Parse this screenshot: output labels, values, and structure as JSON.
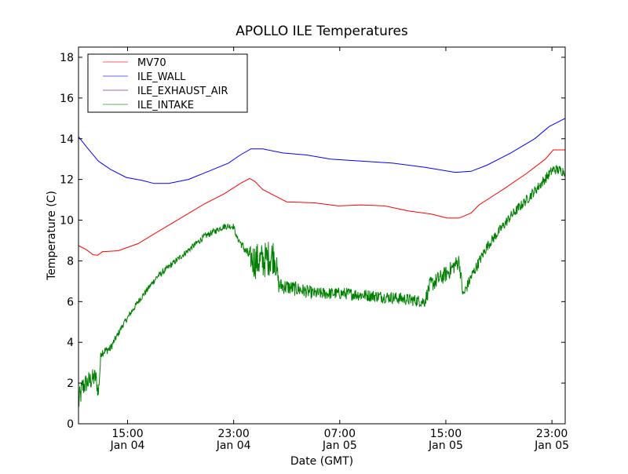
{
  "chart_data": {
    "type": "line",
    "title": "APOLLO ILE Temperatures",
    "xlabel": "Date (GMT)",
    "ylabel": "Temperature (C)",
    "x_units": "hours since Jan 04 00:00 GMT",
    "xlim": [
      11.3,
      48.0
    ],
    "ylim": [
      0,
      18.5
    ],
    "grid": false,
    "legend_position": "top-left",
    "yticks": [
      0,
      2,
      4,
      6,
      8,
      10,
      12,
      14,
      16,
      18
    ],
    "xticks": [
      {
        "value": 15,
        "time": "15:00",
        "date": "Jan 04"
      },
      {
        "value": 23,
        "time": "23:00",
        "date": "Jan 04"
      },
      {
        "value": 31,
        "time": "07:00",
        "date": "Jan 05"
      },
      {
        "value": 39,
        "time": "15:00",
        "date": "Jan 05"
      },
      {
        "value": 47,
        "time": "23:00",
        "date": "Jan 05"
      }
    ],
    "series": [
      {
        "name": "MV70",
        "color": "#ff0000",
        "legend_color": "#ff6666",
        "x": [
          11.3,
          11.9,
          12.4,
          12.75,
          13.1,
          14.3,
          15.8,
          17.2,
          19.0,
          20.8,
          22.3,
          23.5,
          24.2,
          24.6,
          25.2,
          26.1,
          27.0,
          29.1,
          30.9,
          32.6,
          34.4,
          36.2,
          37.9,
          39.1,
          40.0,
          40.9,
          41.5,
          43.3,
          45.1,
          46.5,
          47.1,
          48.0
        ],
        "y": [
          8.75,
          8.55,
          8.3,
          8.28,
          8.45,
          8.5,
          8.85,
          9.4,
          10.1,
          10.8,
          11.3,
          11.8,
          12.05,
          11.9,
          11.5,
          11.2,
          10.9,
          10.85,
          10.7,
          10.75,
          10.7,
          10.45,
          10.3,
          10.1,
          10.1,
          10.35,
          10.75,
          11.5,
          12.3,
          13.0,
          13.45,
          13.45
        ]
      },
      {
        "name": "ILE_WALL",
        "color": "#0000ff",
        "legend_color": "#6666ff",
        "x": [
          11.3,
          11.9,
          12.8,
          13.7,
          14.9,
          16.1,
          17.0,
          18.1,
          19.6,
          21.1,
          22.6,
          23.5,
          24.3,
          25.2,
          26.7,
          28.5,
          30.3,
          32.6,
          35.0,
          37.4,
          39.7,
          40.9,
          42.1,
          43.9,
          45.7,
          46.8,
          48.0
        ],
        "y": [
          14.1,
          13.6,
          12.9,
          12.5,
          12.1,
          11.95,
          11.8,
          11.8,
          12.0,
          12.4,
          12.8,
          13.2,
          13.5,
          13.5,
          13.3,
          13.2,
          13.0,
          12.9,
          12.8,
          12.6,
          12.35,
          12.4,
          12.7,
          13.3,
          14.0,
          14.6,
          15.0
        ]
      },
      {
        "name": "ILE_EXHAUST_AIR",
        "color": "#800080",
        "legend_color": "#a366a3",
        "x": [],
        "y": []
      },
      {
        "name": "ILE_INTAKE",
        "color": "#008000",
        "legend_color": "#66b366",
        "x": [
          11.3,
          11.6,
          11.9,
          12.6,
          12.8,
          13.0,
          13.7,
          14.6,
          15.8,
          17.2,
          19.0,
          20.8,
          22.3,
          23.0,
          23.2,
          24.1,
          24.5,
          25.2,
          26.1,
          26.4,
          27.9,
          29.1,
          31.4,
          33.2,
          35.0,
          37.4,
          37.8,
          39.1,
          40.0,
          40.3,
          40.9,
          42.1,
          43.9,
          45.1,
          46.2,
          47.1,
          48.0
        ],
        "y": [
          1.0,
          1.8,
          2.0,
          2.3,
          1.5,
          3.5,
          3.7,
          4.8,
          6.0,
          7.2,
          8.2,
          9.2,
          9.7,
          9.7,
          9.2,
          8.3,
          8.0,
          8.0,
          8.3,
          6.8,
          6.6,
          6.4,
          6.4,
          6.3,
          6.2,
          6.0,
          6.8,
          7.4,
          8.0,
          6.3,
          7.2,
          8.7,
          10.2,
          11.0,
          11.8,
          12.5,
          12.4
        ],
        "spread": [
          0.6,
          0.6,
          0.5,
          0.5,
          0.4,
          0.25,
          0.2,
          0.15,
          0.15,
          0.15,
          0.15,
          0.15,
          0.15,
          0.15,
          0.1,
          0.3,
          0.9,
          0.9,
          0.9,
          0.4,
          0.35,
          0.3,
          0.3,
          0.3,
          0.3,
          0.3,
          0.4,
          0.4,
          0.4,
          0.3,
          0.3,
          0.25,
          0.25,
          0.25,
          0.25,
          0.25,
          0.25
        ]
      }
    ]
  }
}
